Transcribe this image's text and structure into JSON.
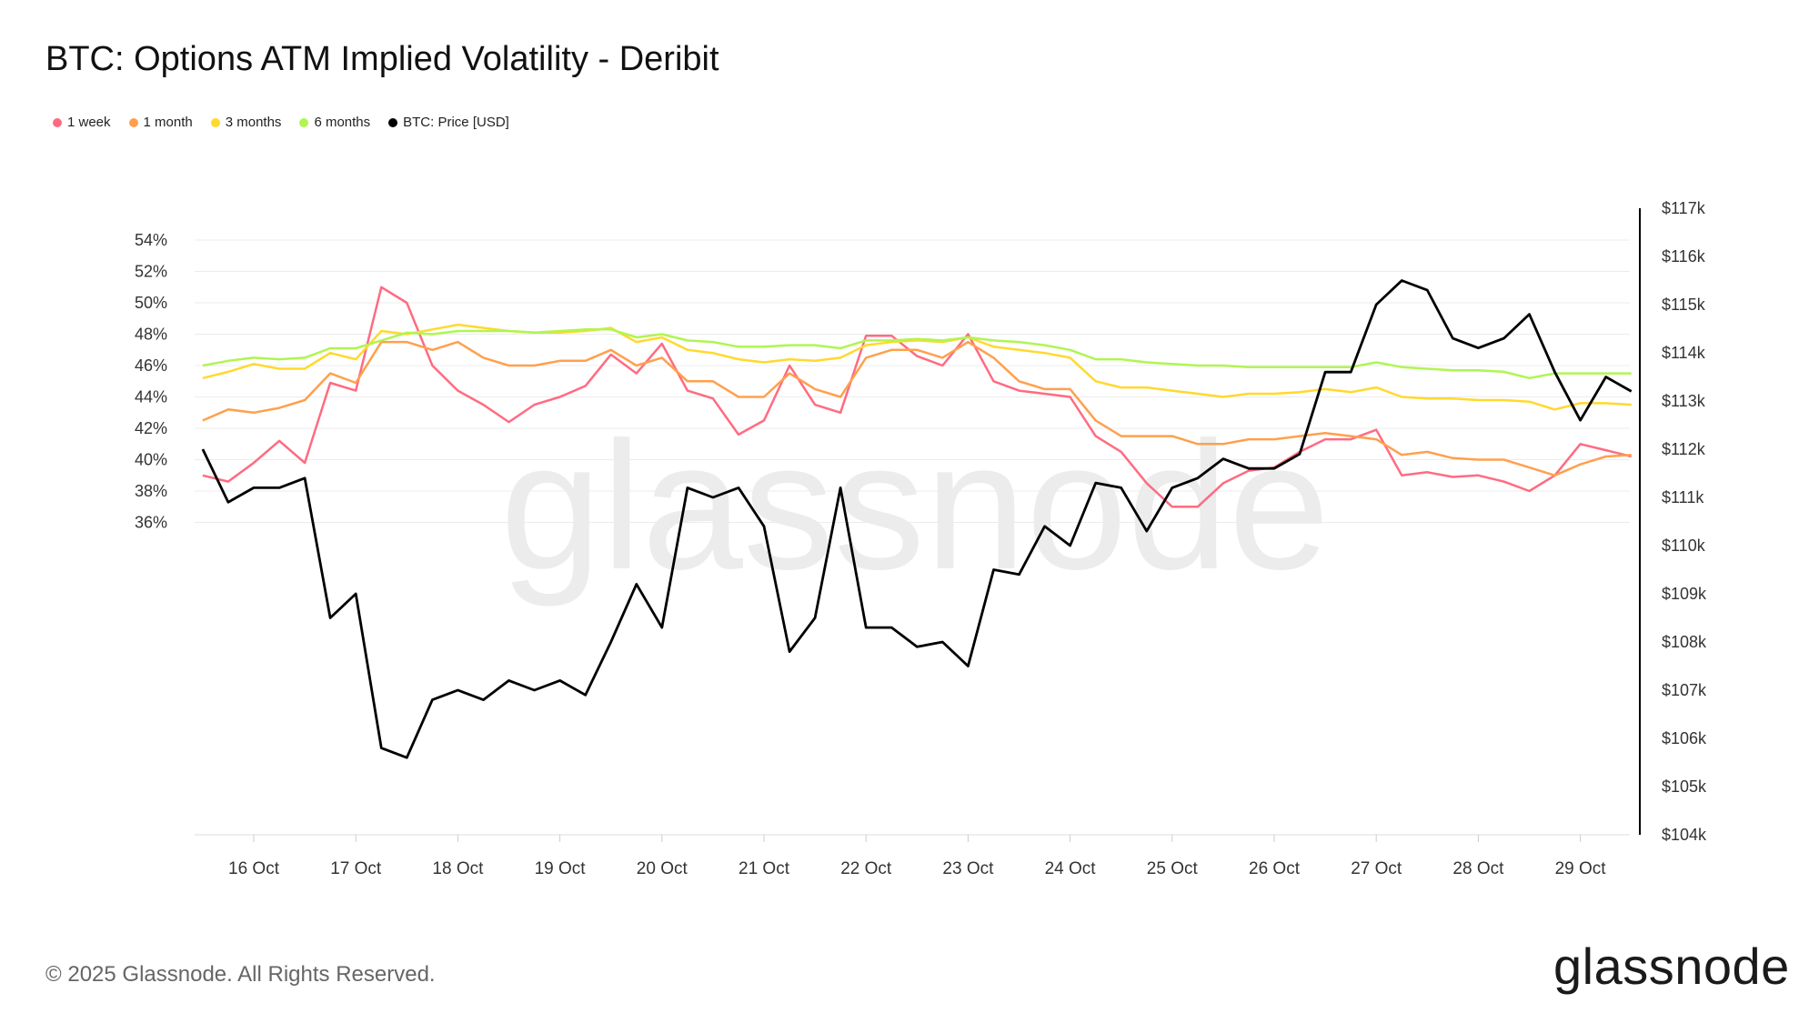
{
  "title": "BTC: Options ATM Implied Volatility - Deribit",
  "footer": "© 2025 Glassnode. All Rights Reserved.",
  "logo": "glassnode",
  "watermark": "glassnode",
  "chart_data": {
    "type": "line",
    "title": "BTC: Options ATM Implied Volatility - Deribit",
    "legend_placement": "top-left",
    "grid": true,
    "x_start": "2025-10-15T12:00",
    "x_step_hours": 6,
    "x_ticks": [
      "16 Oct",
      "17 Oct",
      "18 Oct",
      "19 Oct",
      "20 Oct",
      "21 Oct",
      "22 Oct",
      "23 Oct",
      "24 Oct",
      "25 Oct",
      "26 Oct",
      "27 Oct",
      "28 Oct",
      "29 Oct"
    ],
    "y_left": {
      "range": [
        35,
        55
      ],
      "ticks": [
        36,
        38,
        40,
        42,
        44,
        46,
        48,
        50,
        52,
        54
      ],
      "tick_labels": [
        "36%",
        "38%",
        "40%",
        "42%",
        "44%",
        "46%",
        "48%",
        "50%",
        "52%",
        "54%"
      ]
    },
    "y_right": {
      "range": [
        104,
        117
      ],
      "unit": "$k",
      "ticks": [
        104,
        105,
        106,
        107,
        108,
        109,
        110,
        111,
        112,
        113,
        114,
        115,
        116,
        117
      ],
      "tick_labels": [
        "$104k",
        "$105k",
        "$106k",
        "$107k",
        "$108k",
        "$109k",
        "$110k",
        "$111k",
        "$112k",
        "$113k",
        "$114k",
        "$115k",
        "$116k",
        "$117k"
      ]
    },
    "series": [
      {
        "name": "1 week",
        "axis": "left",
        "color": "#ff6b81",
        "values": [
          39,
          38.6,
          39.8,
          41.2,
          39.8,
          44.9,
          44.4,
          51,
          50,
          46,
          44.4,
          43.5,
          42.4,
          43.5,
          44,
          44.7,
          46.7,
          45.5,
          47.4,
          44.4,
          43.9,
          41.6,
          42.5,
          46,
          43.5,
          43,
          47.9,
          47.9,
          46.6,
          46,
          48,
          45,
          44.4,
          44.2,
          44,
          41.5,
          40.5,
          38.5,
          37,
          37,
          38.5,
          39.3,
          39.5,
          40.5,
          41.3,
          41.3,
          41.9,
          39,
          39.2,
          38.9,
          39,
          38.6,
          38,
          39,
          41,
          40.6,
          40.2
        ]
      },
      {
        "name": "1 month",
        "axis": "left",
        "color": "#ffa04d",
        "values": [
          42.5,
          43.2,
          43,
          43.3,
          43.8,
          45.5,
          44.9,
          47.5,
          47.5,
          47,
          47.5,
          46.5,
          46,
          46,
          46.3,
          46.3,
          47,
          46,
          46.5,
          45,
          45,
          44,
          44,
          45.5,
          44.5,
          44,
          46.5,
          47,
          47,
          46.5,
          47.5,
          46.5,
          45,
          44.5,
          44.5,
          42.5,
          41.5,
          41.5,
          41.5,
          41,
          41,
          41.3,
          41.3,
          41.5,
          41.7,
          41.5,
          41.3,
          40.3,
          40.5,
          40.1,
          40,
          40,
          39.5,
          39,
          39.7,
          40.2,
          40.3
        ]
      },
      {
        "name": "3 months",
        "axis": "left",
        "color": "#ffd92e",
        "values": [
          45.2,
          45.6,
          46.1,
          45.8,
          45.8,
          46.8,
          46.4,
          48.2,
          48,
          48.3,
          48.6,
          48.4,
          48.2,
          48.1,
          48.1,
          48.2,
          48.4,
          47.5,
          47.8,
          47,
          46.8,
          46.4,
          46.2,
          46.4,
          46.3,
          46.5,
          47.3,
          47.5,
          47.6,
          47.5,
          47.8,
          47.2,
          47,
          46.8,
          46.5,
          45,
          44.6,
          44.6,
          44.4,
          44.2,
          44,
          44.2,
          44.2,
          44.3,
          44.5,
          44.3,
          44.6,
          44,
          43.9,
          43.9,
          43.8,
          43.8,
          43.7,
          43.2,
          43.6,
          43.6,
          43.5
        ]
      },
      {
        "name": "6 months",
        "axis": "left",
        "color": "#b0f552",
        "values": [
          46,
          46.3,
          46.5,
          46.4,
          46.5,
          47.1,
          47.1,
          47.6,
          48.1,
          48,
          48.2,
          48.2,
          48.2,
          48.1,
          48.2,
          48.3,
          48.3,
          47.8,
          48,
          47.6,
          47.5,
          47.2,
          47.2,
          47.3,
          47.3,
          47.1,
          47.6,
          47.6,
          47.7,
          47.6,
          47.8,
          47.6,
          47.5,
          47.3,
          47,
          46.4,
          46.4,
          46.2,
          46.1,
          46,
          46,
          45.9,
          45.9,
          45.9,
          45.9,
          45.9,
          46.2,
          45.9,
          45.8,
          45.7,
          45.7,
          45.6,
          45.2,
          45.5,
          45.5,
          45.5,
          45.5
        ]
      },
      {
        "name": "BTC: Price [USD]",
        "axis": "right",
        "color": "#000000",
        "values": [
          112,
          110.9,
          111.2,
          111.2,
          111.4,
          108.5,
          109,
          105.8,
          105.6,
          106.8,
          107,
          106.8,
          107.2,
          107,
          107.2,
          106.9,
          108,
          109.2,
          108.3,
          111.2,
          111,
          111.2,
          110.4,
          107.8,
          108.5,
          111.2,
          108.3,
          108.3,
          107.9,
          108,
          107.5,
          109.5,
          109.4,
          110.4,
          110,
          111.3,
          111.2,
          110.3,
          111.2,
          111.4,
          111.8,
          111.6,
          111.6,
          111.9,
          113.6,
          113.6,
          115,
          115.5,
          115.3,
          114.3,
          114.1,
          114.3,
          114.8,
          113.6,
          112.6,
          113.5,
          113.2
        ]
      }
    ]
  }
}
